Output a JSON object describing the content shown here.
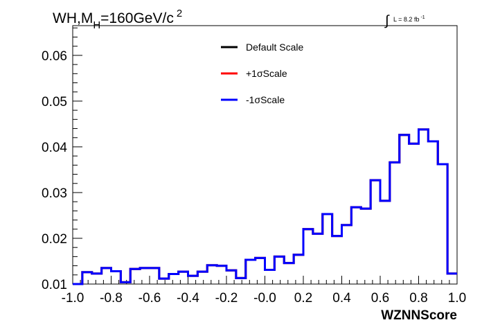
{
  "chart_data": {
    "type": "line",
    "title_main": "WH,M",
    "title_sub": "H",
    "title_rest": "=160GeV/c",
    "title_sup": "2",
    "lumi_label": "L = 8.2 fb",
    "lumi_sup": "-1",
    "xlabel": "WZNNScore",
    "ylabel": "",
    "xlim": [
      -1.0,
      1.0
    ],
    "ylim": [
      0.01,
      0.0665
    ],
    "x_ticks": [
      {
        "value": -1.0,
        "label": "-1.0"
      },
      {
        "value": -0.8,
        "label": "-0.8"
      },
      {
        "value": -0.6,
        "label": "-0.6"
      },
      {
        "value": -0.4,
        "label": "-0.4"
      },
      {
        "value": -0.2,
        "label": "-0.2"
      },
      {
        "value": 0.0,
        "label": "-0.0"
      },
      {
        "value": 0.2,
        "label": "0.2"
      },
      {
        "value": 0.4,
        "label": "0.4"
      },
      {
        "value": 0.6,
        "label": "0.6"
      },
      {
        "value": 0.8,
        "label": "0.8"
      },
      {
        "value": 1.0,
        "label": "1.0"
      }
    ],
    "y_ticks": [
      {
        "value": 0.01,
        "label": "0.01"
      },
      {
        "value": 0.02,
        "label": "0.02"
      },
      {
        "value": 0.03,
        "label": "0.03"
      },
      {
        "value": 0.04,
        "label": "0.04"
      },
      {
        "value": 0.05,
        "label": "0.05"
      },
      {
        "value": 0.06,
        "label": "0.06"
      }
    ],
    "grid": false,
    "legend_position": "top-center",
    "bin_edges": [
      -1.0,
      -0.95,
      -0.9,
      -0.85,
      -0.8,
      -0.75,
      -0.7,
      -0.65,
      -0.6,
      -0.55,
      -0.5,
      -0.45,
      -0.4,
      -0.35,
      -0.3,
      -0.25,
      -0.2,
      -0.15,
      -0.1,
      -0.05,
      0.0,
      0.05,
      0.1,
      0.15,
      0.2,
      0.25,
      0.3,
      0.35,
      0.4,
      0.45,
      0.5,
      0.55,
      0.6,
      0.65,
      0.7,
      0.75,
      0.8,
      0.85,
      0.9,
      0.95,
      1.0
    ],
    "series": [
      {
        "name": "Default Scale",
        "color": "#000000",
        "values": [
          0.01,
          0.0126,
          0.0123,
          0.0135,
          0.0128,
          0.0104,
          0.0133,
          0.0135,
          0.0135,
          0.0112,
          0.0122,
          0.0127,
          0.0118,
          0.0127,
          0.0141,
          0.014,
          0.013,
          0.0113,
          0.0153,
          0.0157,
          0.0131,
          0.016,
          0.0146,
          0.0164,
          0.022,
          0.021,
          0.0253,
          0.0205,
          0.0229,
          0.0268,
          0.0265,
          0.0327,
          0.0282,
          0.0366,
          0.0426,
          0.0407,
          0.0438,
          0.0412,
          0.0362,
          0.0123
        ]
      },
      {
        "name": "+1σScale",
        "color": "#ff0000",
        "values": [
          0.01,
          0.0126,
          0.0123,
          0.0135,
          0.0128,
          0.0104,
          0.0133,
          0.0135,
          0.0135,
          0.0112,
          0.0122,
          0.0127,
          0.0118,
          0.0127,
          0.0141,
          0.014,
          0.013,
          0.0113,
          0.0153,
          0.0157,
          0.0131,
          0.016,
          0.0146,
          0.0164,
          0.022,
          0.021,
          0.0253,
          0.0205,
          0.0229,
          0.0268,
          0.0265,
          0.0327,
          0.0282,
          0.0366,
          0.0426,
          0.0407,
          0.0438,
          0.0412,
          0.0362,
          0.0123
        ]
      },
      {
        "name": "-1σScale",
        "color": "#0000ff",
        "values": [
          0.01,
          0.0126,
          0.0123,
          0.0135,
          0.0128,
          0.0104,
          0.0133,
          0.0135,
          0.0135,
          0.0112,
          0.0122,
          0.0127,
          0.0118,
          0.0127,
          0.0141,
          0.014,
          0.013,
          0.0113,
          0.0153,
          0.0157,
          0.0131,
          0.016,
          0.0146,
          0.0164,
          0.022,
          0.021,
          0.0253,
          0.0205,
          0.0229,
          0.0268,
          0.0265,
          0.0327,
          0.0282,
          0.0366,
          0.0426,
          0.0407,
          0.0438,
          0.0412,
          0.0362,
          0.0123
        ]
      }
    ]
  }
}
